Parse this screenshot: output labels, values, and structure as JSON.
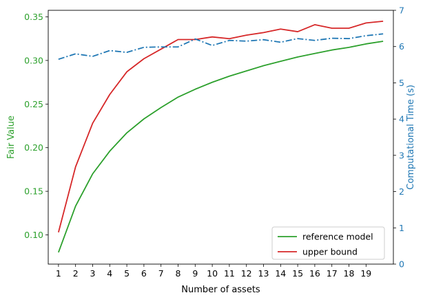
{
  "chart_data": {
    "type": "line",
    "xlabel": "Number of assets",
    "ylabel_left": "Fair Value",
    "ylabel_right": "Computational Time (s)",
    "x_ticks": [
      1,
      2,
      3,
      4,
      5,
      6,
      7,
      8,
      9,
      10,
      11,
      12,
      13,
      14,
      15,
      16,
      17,
      18,
      19
    ],
    "x": [
      1,
      2,
      3,
      4,
      5,
      6,
      7,
      8,
      9,
      10,
      11,
      12,
      13,
      14,
      15,
      16,
      17,
      18,
      19,
      20
    ],
    "xlim": [
      0.4,
      20.6
    ],
    "ylim_left": [
      0.0665,
      0.3575
    ],
    "yticks_left": [
      0.1,
      0.15,
      0.2,
      0.25,
      0.3,
      0.35
    ],
    "ylim_right": [
      0,
      7
    ],
    "yticks_right": [
      0,
      1,
      2,
      3,
      4,
      5,
      6,
      7
    ],
    "left_color": "#2ca02c",
    "right_color": "#1f77b4",
    "legend_position": "lower right",
    "series": [
      {
        "name": "reference model",
        "axis": "left",
        "color": "#2ca02c",
        "style": "solid",
        "values": [
          0.08,
          0.133,
          0.17,
          0.196,
          0.217,
          0.233,
          0.246,
          0.258,
          0.267,
          0.275,
          0.282,
          0.288,
          0.294,
          0.299,
          0.304,
          0.308,
          0.312,
          0.315,
          0.319,
          0.322
        ]
      },
      {
        "name": "upper bound",
        "axis": "left",
        "color": "#d62728",
        "style": "solid",
        "values": [
          0.103,
          0.178,
          0.228,
          0.261,
          0.287,
          0.302,
          0.313,
          0.324,
          0.324,
          0.327,
          0.325,
          0.329,
          0.332,
          0.336,
          0.333,
          0.341,
          0.337,
          0.337,
          0.343,
          0.345
        ]
      },
      {
        "name": "",
        "axis": "right",
        "color": "#1f77b4",
        "style": "dashdot",
        "values": [
          5.65,
          5.8,
          5.73,
          5.89,
          5.84,
          5.98,
          5.99,
          5.99,
          6.21,
          6.03,
          6.17,
          6.15,
          6.19,
          6.12,
          6.22,
          6.17,
          6.23,
          6.22,
          6.3,
          6.35
        ]
      }
    ]
  }
}
